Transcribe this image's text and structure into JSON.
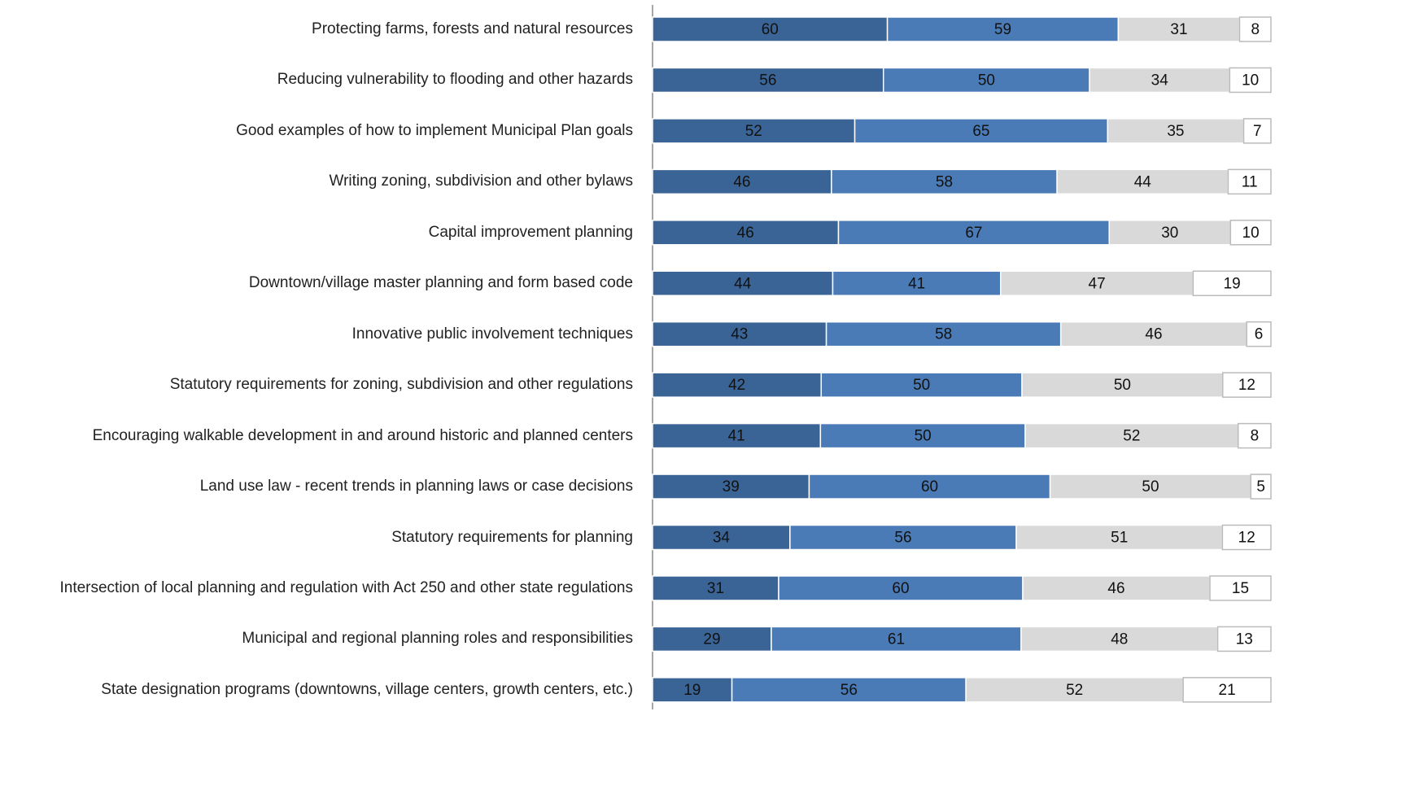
{
  "chart_data": {
    "type": "stacked-bar-100",
    "categories": [
      "Protecting farms, forests and natural resources",
      "Reducing  vulnerability to flooding and other hazards",
      "Good examples of how to implement Municipal Plan goals",
      "Writing zoning, subdivision and other bylaws",
      "Capital improvement planning",
      "Downtown/village master planning and form based code",
      "Innovative public involvement techniques",
      "Statutory requirements for zoning, subdivision and other regulations",
      "Encouraging walkable development in and around historic and planned centers",
      "Land use law - recent trends in planning laws or case decisions",
      "Statutory requirements for planning",
      "Intersection of local planning and regulation with Act 250 and other state regulations",
      "Municipal and regional planning roles and responsibilities",
      "State designation programs (downtowns, village centers, growth centers, etc.)"
    ],
    "series": [
      {
        "color": "#3a6496",
        "values": [
          60,
          56,
          52,
          46,
          46,
          44,
          43,
          42,
          41,
          39,
          34,
          31,
          29,
          19
        ]
      },
      {
        "color": "#4a7bb7",
        "values": [
          59,
          50,
          65,
          58,
          67,
          41,
          58,
          50,
          50,
          60,
          56,
          60,
          61,
          56
        ]
      },
      {
        "color": "#d9d9d9",
        "values": [
          31,
          34,
          35,
          44,
          30,
          47,
          46,
          50,
          52,
          50,
          51,
          46,
          48,
          52
        ]
      },
      {
        "color": "#ffffff",
        "values": [
          8,
          10,
          7,
          11,
          10,
          19,
          6,
          12,
          8,
          5,
          12,
          15,
          13,
          21
        ]
      }
    ]
  }
}
